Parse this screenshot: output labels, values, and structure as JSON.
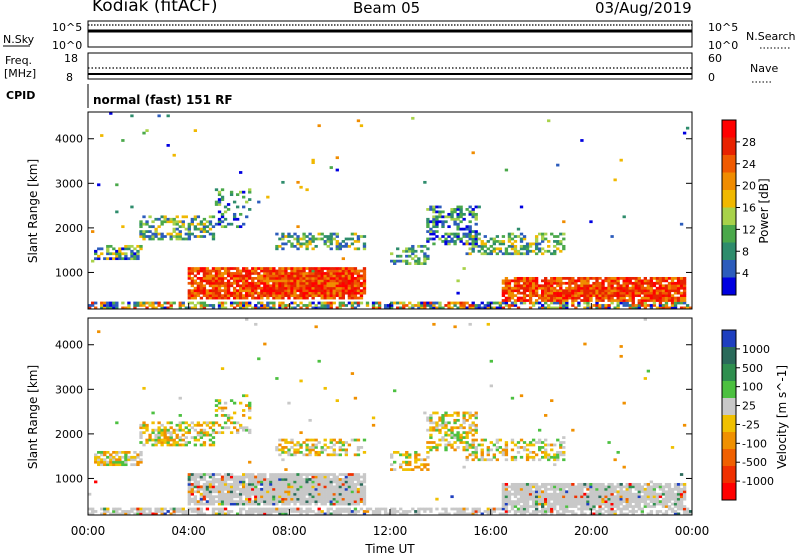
{
  "header": {
    "station": "Kodiak (fitACF)",
    "beam": "Beam 05",
    "date": "03/Aug/2019"
  },
  "noise_panel": {
    "left_label": "N.Sky",
    "right_label": "N.Search",
    "left_ticks": [
      "10^5",
      "10^0"
    ],
    "right_ticks": [
      "10^5",
      "10^0"
    ]
  },
  "freq_panel": {
    "left_label_line1": "Freq.",
    "left_label_line2": "[MHz]",
    "right_label": "Nave",
    "left_ticks": [
      "18",
      "8"
    ],
    "right_ticks": [
      "60",
      "0"
    ],
    "cpid_label": "CPID"
  },
  "cpid_text": "normal (fast) 151 RF",
  "colors": {
    "power_scale": [
      "#0000e0",
      "#2c5cbc",
      "#2e8c6c",
      "#4aa84a",
      "#a8d24a",
      "#f0b800",
      "#f08c00",
      "#f05a00",
      "#e82200",
      "#ff0000"
    ],
    "velocity_scale": [
      "#1e3fbf",
      "#2a6a5a",
      "#2f8f4f",
      "#4cc040",
      "#c8c8c8",
      "#f0c000",
      "#f09000",
      "#f06000",
      "#f03000",
      "#ff0000"
    ]
  },
  "chart_data": [
    {
      "type": "heatmap",
      "quantity": "power",
      "xlabel": "",
      "ylabel": "Slant Range [km]",
      "x_range_hours": [
        0,
        24
      ],
      "ylim": [
        180,
        4600
      ],
      "yticks": [
        1000,
        2000,
        3000,
        4000
      ],
      "colorbar": {
        "label": "Power [dB]",
        "ticks": [
          "4",
          "8",
          "12",
          "16",
          "20",
          "24",
          "28"
        ],
        "range": [
          0,
          32
        ]
      }
    },
    {
      "type": "heatmap",
      "quantity": "velocity",
      "xlabel": "Time UT",
      "ylabel": "Slant Range [km]",
      "x_range_hours": [
        0,
        24
      ],
      "ylim": [
        180,
        4600
      ],
      "yticks": [
        1000,
        2000,
        3000,
        4000
      ],
      "xticks": [
        "00:00",
        "04:00",
        "08:00",
        "12:00",
        "16:00",
        "20:00",
        "00:00"
      ],
      "colorbar": {
        "label": "Velocity [m s^-1]",
        "ticks": [
          "1000",
          "500",
          "100",
          "25",
          "-25",
          "-100",
          "-500",
          "-1000"
        ]
      }
    }
  ]
}
